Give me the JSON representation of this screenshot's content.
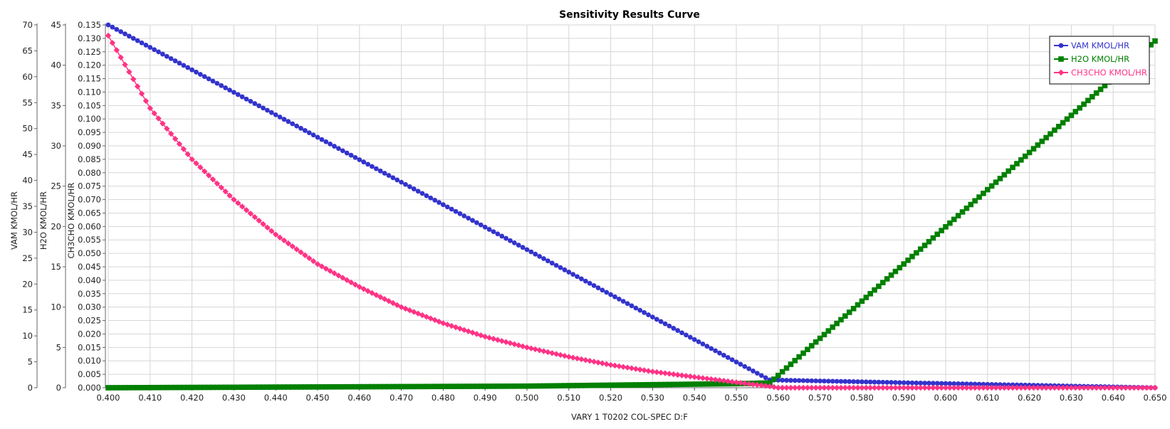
{
  "chart_data": {
    "type": "line",
    "title": "Sensitivity Results Curve",
    "xlabel": "VARY   1 T0202 COL-SPEC D:F",
    "xlim": [
      0.4,
      0.65
    ],
    "x_ticks": [
      "0.400",
      "0.410",
      "0.420",
      "0.430",
      "0.440",
      "0.450",
      "0.460",
      "0.470",
      "0.480",
      "0.490",
      "0.500",
      "0.510",
      "0.520",
      "0.530",
      "0.540",
      "0.550",
      "0.560",
      "0.570",
      "0.580",
      "0.590",
      "0.600",
      "0.610",
      "0.620",
      "0.630",
      "0.640",
      "0.650"
    ],
    "grid": true,
    "legend_position": "top-right",
    "y_axes": [
      {
        "label": "VAM KMOL/HR",
        "ylim": [
          0,
          70
        ],
        "ticks": [
          "0",
          "5",
          "10",
          "15",
          "20",
          "25",
          "30",
          "35",
          "40",
          "45",
          "50",
          "55",
          "60",
          "65",
          "70"
        ]
      },
      {
        "label": "H2O KMOL/HR",
        "ylim": [
          0,
          45
        ],
        "ticks": [
          "0",
          "5",
          "10",
          "15",
          "20",
          "25",
          "30",
          "35",
          "40",
          "45"
        ]
      },
      {
        "label": "CH3CHO KMOL/HR",
        "ylim": [
          0,
          0.135
        ],
        "ticks": [
          "0.000",
          "0.005",
          "0.010",
          "0.015",
          "0.020",
          "0.025",
          "0.030",
          "0.035",
          "0.040",
          "0.045",
          "0.050",
          "0.055",
          "0.060",
          "0.065",
          "0.070",
          "0.075",
          "0.080",
          "0.085",
          "0.090",
          "0.095",
          "0.100",
          "0.105",
          "0.110",
          "0.115",
          "0.120",
          "0.125",
          "0.130",
          "0.135"
        ]
      }
    ],
    "series": [
      {
        "name": "VAM KMOL/HR",
        "axis": 0,
        "color": "#3333cc",
        "marker": "circle",
        "x": [
          0.4,
          0.558,
          0.65
        ],
        "y": [
          70,
          1.5,
          0
        ]
      },
      {
        "name": "H2O KMOL/HR",
        "axis": 1,
        "color": "#008000",
        "marker": "square",
        "x": [
          0.4,
          0.45,
          0.5,
          0.55,
          0.558,
          0.65
        ],
        "y": [
          0,
          0.1,
          0.2,
          0.5,
          0.6,
          43
        ]
      },
      {
        "name": "CH3CHO KMOL/HR",
        "axis": 2,
        "color": "#ff3385",
        "marker": "diamond",
        "x": [
          0.4,
          0.41,
          0.42,
          0.43,
          0.44,
          0.45,
          0.46,
          0.47,
          0.48,
          0.49,
          0.5,
          0.51,
          0.52,
          0.53,
          0.54,
          0.55,
          0.558,
          0.56,
          0.65
        ],
        "y": [
          0.131,
          0.104,
          0.085,
          0.07,
          0.057,
          0.046,
          0.0375,
          0.03,
          0.024,
          0.019,
          0.015,
          0.0115,
          0.0085,
          0.006,
          0.004,
          0.002,
          0.0005,
          0.0,
          0.0
        ]
      }
    ]
  }
}
